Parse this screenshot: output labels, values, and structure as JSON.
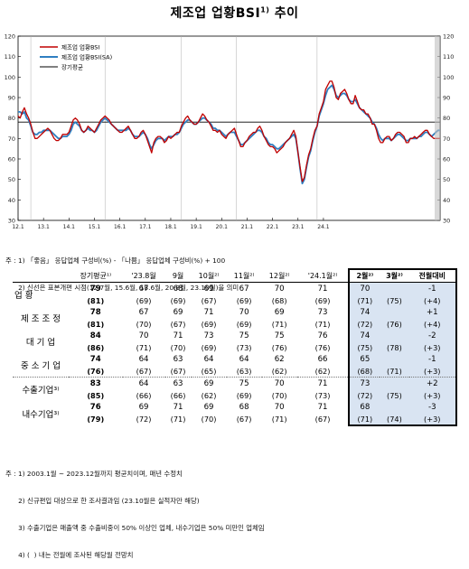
{
  "title": "제조업 업황BSI",
  "title_footnote": "1)",
  "title_suffix": " 추이",
  "chart_data": {
    "type": "line",
    "ylim": [
      30,
      120
    ],
    "yticks": [
      "30",
      "40",
      "50",
      "60",
      "70",
      "80",
      "90",
      "100",
      "110",
      "120"
    ],
    "xtick_labels": [
      "12.1",
      "13.1",
      "14.1",
      "15.1",
      "16.1",
      "17.1",
      "18.1",
      "19.1",
      "20.1",
      "21.1",
      "22.1",
      "23.1",
      "24.1"
    ],
    "legend": [
      "제조업 업황BSI",
      "제조업 업황BSI(SA)",
      "장기평균"
    ],
    "long_term_average": 78,
    "colors": {
      "original": "#c00000",
      "sa": "#2f7fc1",
      "average": "#000000"
    },
    "x_start": "2012-01",
    "series": [
      {
        "name": "제조업 업황BSI",
        "values": [
          81,
          80,
          83,
          85,
          82,
          80,
          77,
          73,
          70,
          70,
          71,
          72,
          73,
          74,
          75,
          74,
          72,
          70,
          69,
          69,
          70,
          72,
          72,
          72,
          73,
          76,
          79,
          80,
          79,
          77,
          74,
          73,
          74,
          76,
          75,
          74,
          73,
          75,
          77,
          79,
          80,
          81,
          80,
          79,
          77,
          76,
          75,
          74,
          73,
          73,
          74,
          75,
          76,
          74,
          72,
          70,
          70,
          71,
          73,
          74,
          72,
          69,
          66,
          63,
          68,
          70,
          71,
          71,
          70,
          68,
          69,
          71,
          70,
          71,
          72,
          73,
          73,
          76,
          78,
          80,
          81,
          79,
          78,
          77,
          77,
          78,
          80,
          82,
          81,
          79,
          78,
          76,
          74,
          74,
          73,
          74,
          72,
          71,
          70,
          72,
          73,
          74,
          75,
          72,
          69,
          66,
          66,
          68,
          69,
          71,
          72,
          73,
          73,
          75,
          76,
          74,
          71,
          69,
          67,
          66,
          66,
          65,
          63,
          64,
          65,
          66,
          68,
          69,
          70,
          72,
          74,
          71,
          63,
          56,
          49,
          51,
          57,
          62,
          65,
          70,
          74,
          76,
          82,
          85,
          88,
          94,
          96,
          98,
          98,
          95,
          90,
          89,
          92,
          93,
          94,
          92,
          89,
          87,
          87,
          91,
          88,
          85,
          84,
          84,
          82,
          82,
          80,
          77,
          77,
          74,
          70,
          68,
          68,
          70,
          71,
          71,
          69,
          70,
          72,
          73,
          73,
          72,
          71,
          68,
          68,
          70,
          70,
          71,
          70,
          71,
          72,
          73,
          74,
          74,
          72,
          71,
          70,
          70,
          70,
          70
        ],
        "color": "#c00000"
      },
      {
        "name": "제조업 업황BSI(SA)",
        "values": [
          83,
          83,
          82,
          83,
          80,
          79,
          76,
          73,
          72,
          72,
          73,
          73,
          74,
          74,
          74,
          74,
          73,
          72,
          71,
          70,
          70,
          71,
          71,
          71,
          72,
          74,
          77,
          78,
          77,
          76,
          74,
          73,
          74,
          75,
          74,
          74,
          73,
          74,
          76,
          78,
          79,
          80,
          79,
          78,
          77,
          76,
          75,
          74,
          74,
          74,
          74,
          74,
          75,
          74,
          72,
          71,
          71,
          71,
          72,
          73,
          72,
          70,
          67,
          65,
          67,
          69,
          70,
          70,
          70,
          69,
          70,
          71,
          71,
          71,
          72,
          72,
          73,
          75,
          77,
          78,
          79,
          79,
          78,
          77,
          77,
          78,
          79,
          80,
          80,
          79,
          78,
          77,
          75,
          75,
          74,
          74,
          73,
          72,
          71,
          72,
          73,
          73,
          73,
          71,
          69,
          67,
          67,
          68,
          69,
          70,
          71,
          72,
          73,
          74,
          74,
          73,
          71,
          70,
          68,
          67,
          67,
          66,
          65,
          65,
          66,
          67,
          68,
          69,
          70,
          71,
          72,
          70,
          63,
          55,
          48,
          50,
          56,
          61,
          64,
          69,
          73,
          76,
          81,
          84,
          87,
          91,
          94,
          95,
          96,
          94,
          91,
          90,
          91,
          92,
          92,
          91,
          89,
          88,
          88,
          89,
          87,
          85,
          84,
          83,
          82,
          81,
          80,
          78,
          77,
          75,
          72,
          70,
          69,
          70,
          70,
          70,
          69,
          70,
          71,
          72,
          72,
          71,
          70,
          69,
          69,
          70,
          70,
          70,
          70,
          71,
          71,
          72,
          73,
          73,
          72,
          71,
          72,
          73,
          74,
          74
        ],
        "color": "#2f7fc1"
      }
    ]
  },
  "notes": {
    "chart": [
      "주 : 1) 「좋음」 응답업체 구성비(%) - 「나쁨」 응답업체 구성비(%) + 100",
      "      2) 신선은 표본개편 시점(12.7월, 15.6월, 18.6월, 20.8월, 23.10월)을 의미"
    ],
    "table": [
      "주 : 1) 2003.1월 ~ 2023.12월까지 평균치이며, 매년 수정치",
      "      2) 신규편입 대상으로 한 조사결과임 (23.10월은 실적자만 해당)",
      "      3) 수출기업은 매출액 중 수출비중이 50% 이상인 업체, 내수기업은 50% 미만인 업체임",
      "      4) (  ) 내는 전월에 조사된 해당월 전망치"
    ]
  },
  "table": {
    "headers": [
      "장기평균¹⁾",
      "'23.8월",
      "9월",
      "10월²⁾",
      "11월²⁾",
      "12월²⁾",
      "'24.1월²⁾",
      "2월²⁾",
      "3월²⁾",
      "전월대비"
    ],
    "rows": [
      {
        "label": "업       황",
        "group": true,
        "main": [
          "79",
          "67",
          "68",
          "69",
          "67",
          "70",
          "71",
          "70",
          "",
          "-1"
        ],
        "sub": [
          "(81)",
          "(69)",
          "(69)",
          "(67)",
          "(69)",
          "(68)",
          "(69)",
          "(71)",
          "(75)",
          "(+4)"
        ]
      },
      {
        "label": "제 조 조 정",
        "main": [
          "78",
          "67",
          "69",
          "71",
          "70",
          "69",
          "73",
          "74",
          "",
          "+1"
        ],
        "sub": [
          "(81)",
          "(70)",
          "(67)",
          "(69)",
          "(69)",
          "(71)",
          "(71)",
          "(72)",
          "(76)",
          "(+4)"
        ]
      },
      {
        "label": "대  기  업",
        "main": [
          "84",
          "70",
          "71",
          "73",
          "75",
          "75",
          "76",
          "74",
          "",
          "-2"
        ],
        "sub": [
          "(86)",
          "(71)",
          "(70)",
          "(69)",
          "(73)",
          "(76)",
          "(76)",
          "(75)",
          "(78)",
          "(+3)"
        ]
      },
      {
        "label": "중 소 기 업",
        "main": [
          "74",
          "64",
          "63",
          "64",
          "64",
          "62",
          "66",
          "65",
          "",
          "-1"
        ],
        "sub": [
          "(76)",
          "(67)",
          "(67)",
          "(65)",
          "(63)",
          "(62)",
          "(62)",
          "(68)",
          "(71)",
          "(+3)"
        ]
      },
      {
        "label": "수출기업³⁾",
        "group": true,
        "main": [
          "83",
          "64",
          "63",
          "69",
          "75",
          "70",
          "71",
          "73",
          "",
          "+2"
        ],
        "sub": [
          "(85)",
          "(66)",
          "(66)",
          "(62)",
          "(69)",
          "(70)",
          "(73)",
          "(72)",
          "(75)",
          "(+3)"
        ]
      },
      {
        "label": "내수기업³⁾",
        "main": [
          "76",
          "69",
          "71",
          "69",
          "68",
          "70",
          "71",
          "68",
          "",
          "-3"
        ],
        "sub": [
          "(79)",
          "(72)",
          "(71)",
          "(70)",
          "(67)",
          "(71)",
          "(67)",
          "(71)",
          "(74)",
          "(+3)"
        ]
      }
    ]
  }
}
